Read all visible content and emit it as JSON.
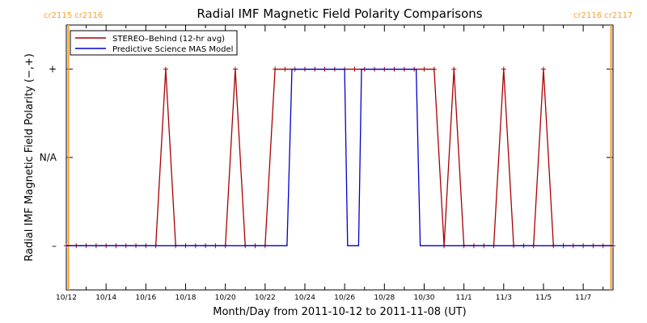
{
  "chart_data": {
    "type": "line",
    "title": "Radial IMF Magnetic Field Polarity Comparisons",
    "xlabel": "Month/Day from 2011-10-12 to 2011-11-08 (UT)",
    "ylabel": "Radial IMF Magnetic Field Polarity (−,+)",
    "x_unit": "days since 2011-10-12",
    "xlim": [
      0,
      27.5
    ],
    "ylim": [
      -1.5,
      1.5
    ],
    "y_ticks": [
      {
        "value": 1,
        "label": "+"
      },
      {
        "value": 0,
        "label": "N/A"
      },
      {
        "value": -1,
        "label": "–"
      }
    ],
    "x_ticks": [
      {
        "value": 0,
        "label": "10/12"
      },
      {
        "value": 2,
        "label": "10/14"
      },
      {
        "value": 4,
        "label": "10/16"
      },
      {
        "value": 6,
        "label": "10/18"
      },
      {
        "value": 8,
        "label": "10/20"
      },
      {
        "value": 10,
        "label": "10/22"
      },
      {
        "value": 12,
        "label": "10/24"
      },
      {
        "value": 14,
        "label": "10/26"
      },
      {
        "value": 16,
        "label": "10/28"
      },
      {
        "value": 18,
        "label": "10/30"
      },
      {
        "value": 20,
        "label": "11/1"
      },
      {
        "value": 22,
        "label": "11/3"
      },
      {
        "value": 24,
        "label": "11/5"
      },
      {
        "value": 26,
        "label": "11/7"
      }
    ],
    "carrington_markers": [
      {
        "x": 0.1,
        "labels": [
          "cr2115",
          "cr2116"
        ],
        "side": "left"
      },
      {
        "x": 27.4,
        "labels": [
          "cr2116",
          "cr2117"
        ],
        "side": "right"
      }
    ],
    "legend_position": "top-left",
    "series": [
      {
        "name": "STEREO–Behind (12-hr avg)",
        "color": "#aa0000",
        "markers": true,
        "x": [
          0,
          0.5,
          1,
          1.5,
          2,
          2.5,
          3,
          3.5,
          4,
          4.5,
          5,
          5.5,
          6,
          6.5,
          7,
          7.5,
          8,
          8.5,
          9,
          9.5,
          10,
          10.5,
          11,
          11.5,
          12,
          12.5,
          13,
          13.5,
          14,
          14.5,
          15,
          15.5,
          16,
          16.5,
          17,
          17.5,
          18,
          18.5,
          19,
          19.5,
          20,
          20.5,
          21,
          21.5,
          22,
          22.5,
          23,
          23.5,
          24,
          24.5,
          25,
          25.5,
          26,
          26.5,
          27,
          27.5
        ],
        "values": [
          -1,
          -1,
          -1,
          -1,
          -1,
          -1,
          -1,
          -1,
          -1,
          -1,
          1,
          -1,
          -1,
          -1,
          -1,
          -1,
          -1,
          1,
          -1,
          -1,
          -1,
          1,
          1,
          1,
          1,
          1,
          1,
          1,
          1,
          1,
          1,
          1,
          1,
          1,
          1,
          1,
          1,
          1,
          -1,
          1,
          -1,
          -1,
          -1,
          -1,
          1,
          -1,
          -1,
          -1,
          1,
          -1,
          -1,
          -1,
          -1,
          -1,
          -1,
          -1
        ]
      },
      {
        "name": "Predictive Science MAS Model",
        "color": "#0000cc",
        "markers": false,
        "x": [
          0,
          11.1,
          11.35,
          14.0,
          14.15,
          14.7,
          14.85,
          17.6,
          17.8,
          27.5
        ],
        "values": [
          -1,
          -1,
          1,
          1,
          -1,
          -1,
          1,
          1,
          -1,
          -1
        ]
      }
    ]
  }
}
